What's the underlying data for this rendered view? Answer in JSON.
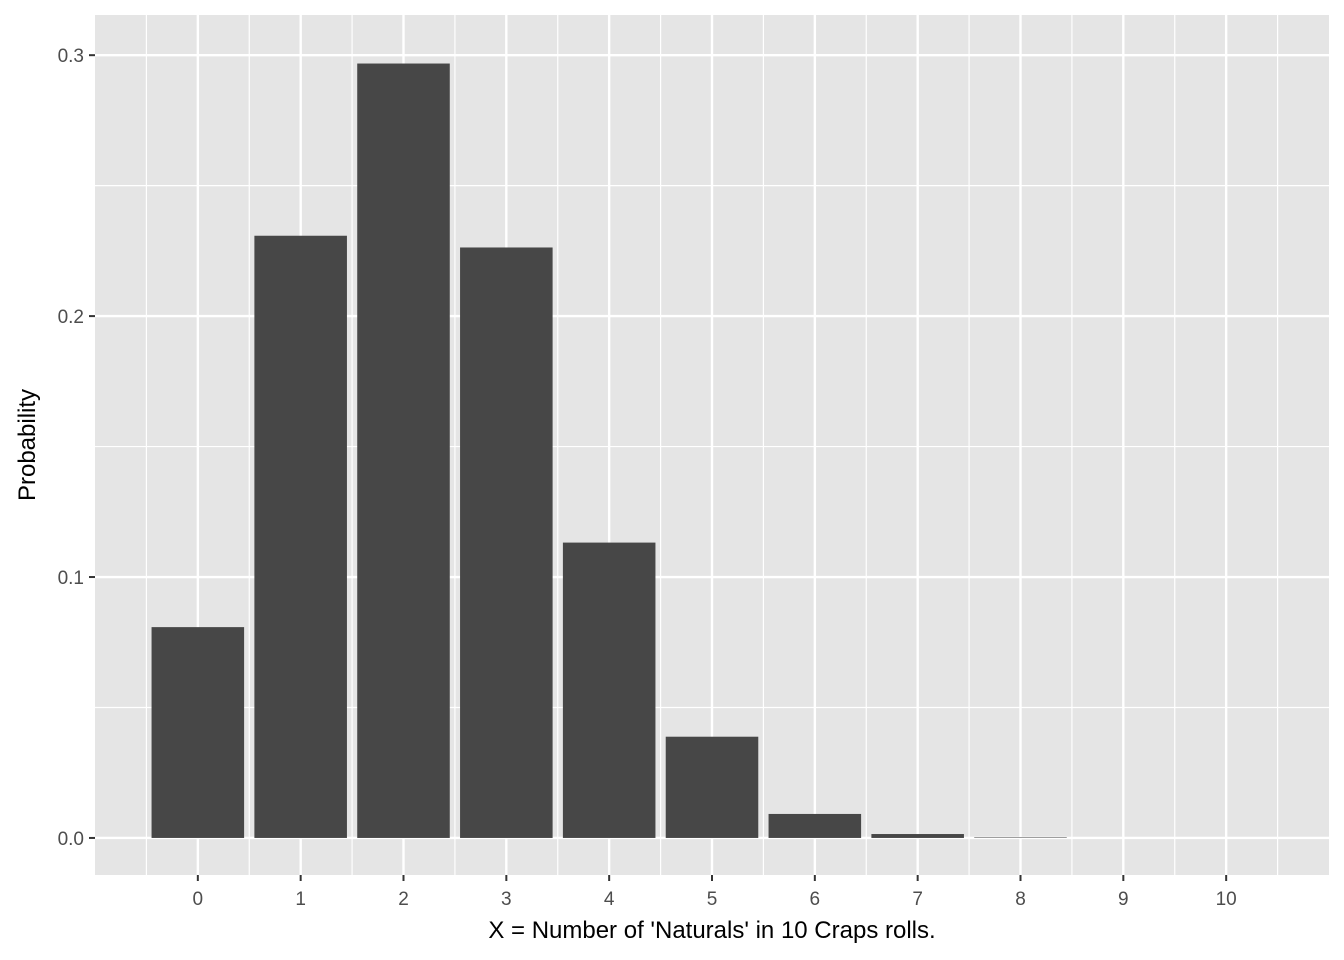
{
  "chart_data": {
    "type": "bar",
    "title": "",
    "xlabel": "X = Number of 'Naturals' in 10  Craps rolls.",
    "ylabel": "Probability",
    "categories": [
      "0",
      "1",
      "2",
      "3",
      "4",
      "5",
      "6",
      "7",
      "8",
      "9",
      "10"
    ],
    "x": [
      0,
      1,
      2,
      3,
      4,
      5,
      6,
      7,
      8,
      9,
      10
    ],
    "values": [
      0.0808,
      0.2308,
      0.2968,
      0.2263,
      0.1132,
      0.0388,
      0.0092,
      0.0015,
      0.0002,
      0.0,
      0.0
    ],
    "ylim": [
      -0.0142,
      0.3154
    ],
    "xlim": [
      -1,
      11
    ],
    "yticks": [
      0.0,
      0.1,
      0.2,
      0.3
    ],
    "ytick_labels": [
      "0.0",
      "0.1",
      "0.2",
      "0.3"
    ],
    "grid": true,
    "legend": "none",
    "colors": {
      "bar": "#474747",
      "panel": "#e5e5e5",
      "grid": "#ffffff",
      "tick_text": "#4d4d4d",
      "title_text": "#000000"
    }
  }
}
